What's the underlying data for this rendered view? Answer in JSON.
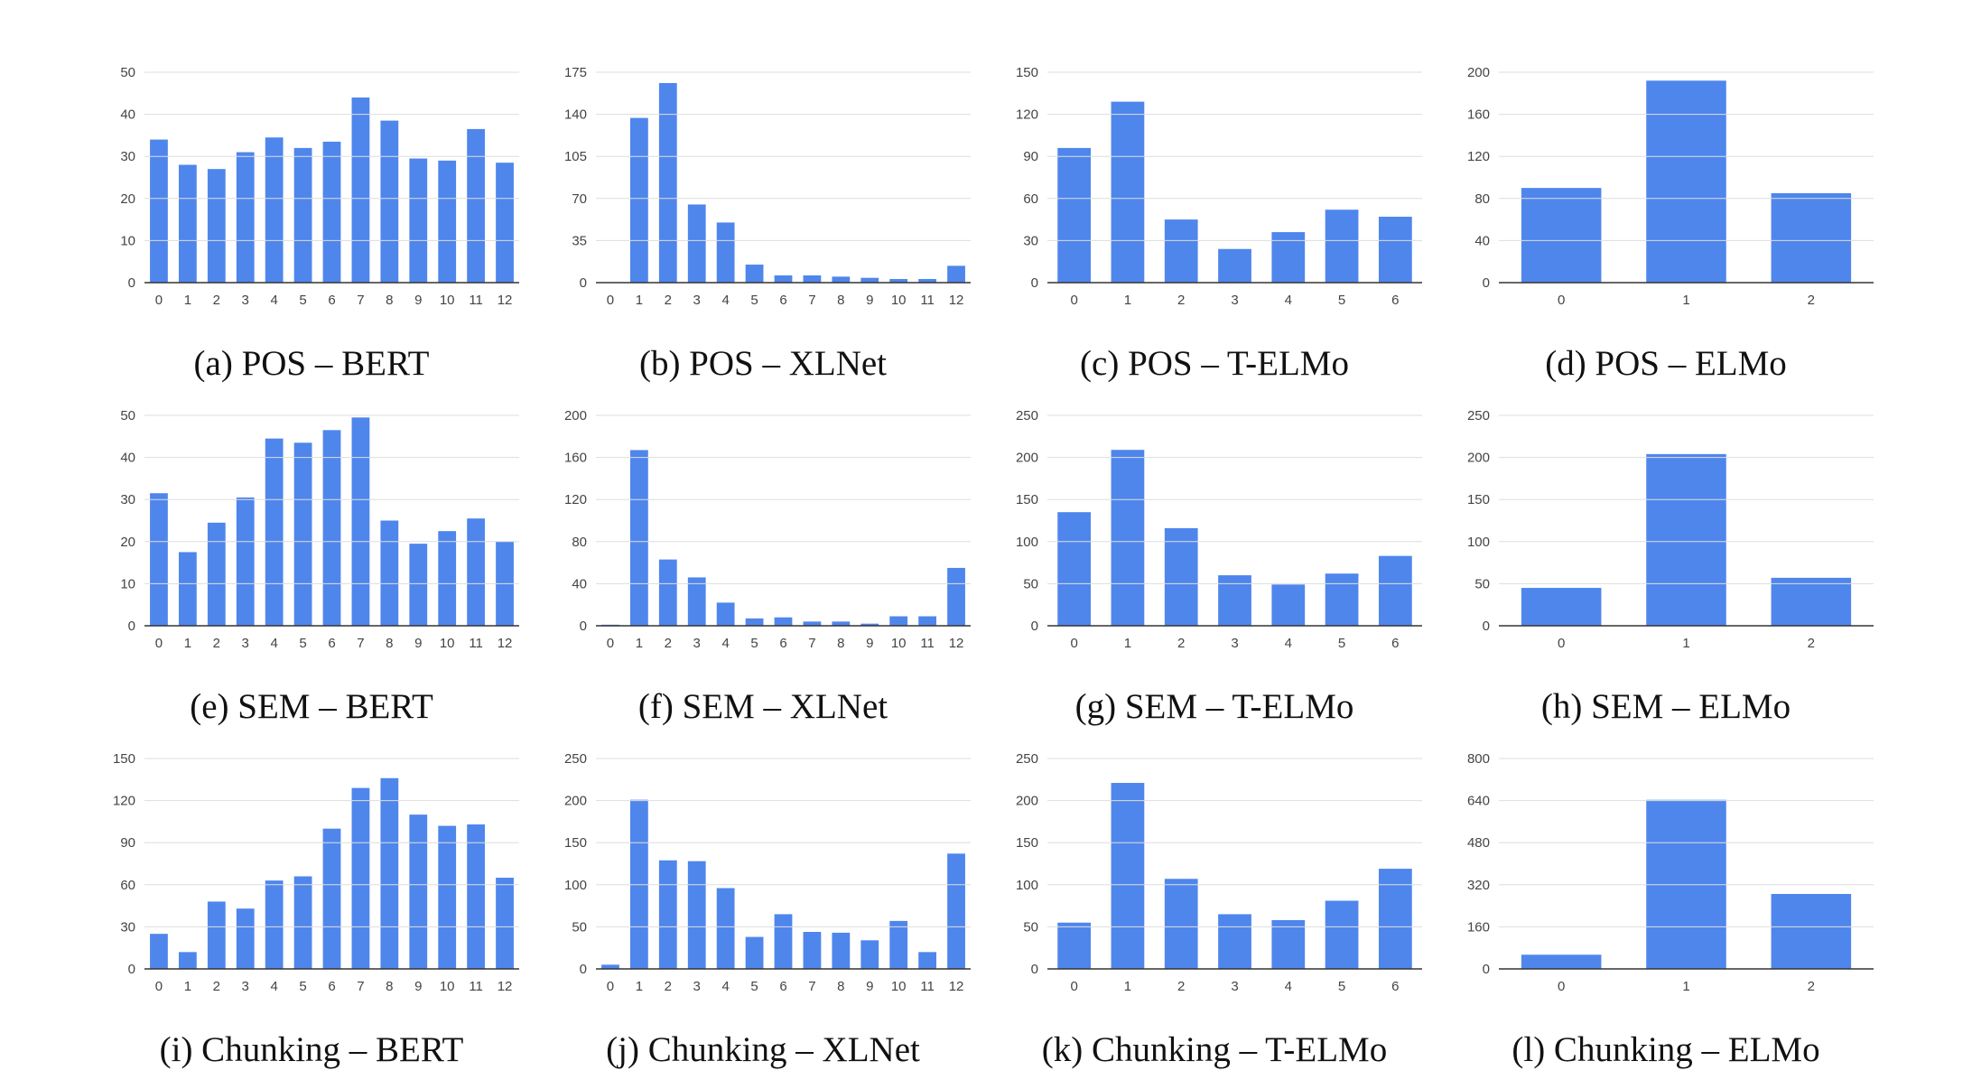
{
  "bar_color": "#4f86ec",
  "chart_data": [
    {
      "type": "bar",
      "caption": "(a) POS – BERT",
      "categories": [
        "0",
        "1",
        "2",
        "3",
        "4",
        "5",
        "6",
        "7",
        "8",
        "9",
        "10",
        "11",
        "12"
      ],
      "values": [
        34,
        28,
        27,
        31,
        34.5,
        32,
        33.5,
        44,
        38.5,
        29.5,
        29,
        36.5,
        28.5
      ],
      "ylim": [
        0,
        50
      ],
      "yticks": [
        0,
        10,
        20,
        30,
        40,
        50
      ],
      "grid": true
    },
    {
      "type": "bar",
      "caption": "(b) POS – XLNet",
      "categories": [
        "0",
        "1",
        "2",
        "3",
        "4",
        "5",
        "6",
        "7",
        "8",
        "9",
        "10",
        "11",
        "12"
      ],
      "values": [
        0,
        137,
        166,
        65,
        50,
        15,
        6,
        6,
        5,
        4,
        3,
        3,
        14
      ],
      "ylim": [
        0,
        175
      ],
      "yticks": [
        0,
        35,
        70,
        105,
        140,
        175
      ],
      "grid": true
    },
    {
      "type": "bar",
      "caption": "(c) POS – T-ELMo",
      "categories": [
        "0",
        "1",
        "2",
        "3",
        "4",
        "5",
        "6"
      ],
      "values": [
        96,
        129,
        45,
        24,
        36,
        52,
        47
      ],
      "ylim": [
        0,
        150
      ],
      "yticks": [
        0,
        30,
        60,
        90,
        120,
        150
      ],
      "grid": true
    },
    {
      "type": "bar",
      "caption": "(d) POS – ELMo",
      "categories": [
        "0",
        "1",
        "2"
      ],
      "values": [
        90,
        192,
        85
      ],
      "ylim": [
        0,
        200
      ],
      "yticks": [
        0,
        40,
        80,
        120,
        160,
        200
      ],
      "grid": true
    },
    {
      "type": "bar",
      "caption": "(e) SEM – BERT",
      "categories": [
        "0",
        "1",
        "2",
        "3",
        "4",
        "5",
        "6",
        "7",
        "8",
        "9",
        "10",
        "11",
        "12"
      ],
      "values": [
        31.5,
        17.5,
        24.5,
        30.5,
        44.5,
        43.5,
        46.5,
        49.5,
        25,
        19.5,
        22.5,
        25.5,
        20
      ],
      "ylim": [
        0,
        50
      ],
      "yticks": [
        0,
        10,
        20,
        30,
        40,
        50
      ],
      "grid": true
    },
    {
      "type": "bar",
      "caption": "(f) SEM – XLNet",
      "categories": [
        "0",
        "1",
        "2",
        "3",
        "4",
        "5",
        "6",
        "7",
        "8",
        "9",
        "10",
        "11",
        "12"
      ],
      "values": [
        1,
        167,
        63,
        46,
        22,
        7,
        8,
        4,
        4,
        2,
        9,
        9,
        55
      ],
      "ylim": [
        0,
        200
      ],
      "yticks": [
        0,
        40,
        80,
        120,
        160,
        200
      ],
      "grid": true
    },
    {
      "type": "bar",
      "caption": "(g) SEM – T-ELMo",
      "categories": [
        "0",
        "1",
        "2",
        "3",
        "4",
        "5",
        "6"
      ],
      "values": [
        135,
        209,
        116,
        60,
        49,
        62,
        83
      ],
      "ylim": [
        0,
        250
      ],
      "yticks": [
        0,
        50,
        100,
        150,
        200,
        250
      ],
      "grid": true
    },
    {
      "type": "bar",
      "caption": "(h) SEM – ELMo",
      "categories": [
        "0",
        "1",
        "2"
      ],
      "values": [
        45,
        204,
        57
      ],
      "ylim": [
        0,
        250
      ],
      "yticks": [
        0,
        50,
        100,
        150,
        200,
        250
      ],
      "grid": true
    },
    {
      "type": "bar",
      "caption": "(i) Chunking – BERT",
      "categories": [
        "0",
        "1",
        "2",
        "3",
        "4",
        "5",
        "6",
        "7",
        "8",
        "9",
        "10",
        "11",
        "12"
      ],
      "values": [
        25,
        12,
        48,
        43,
        63,
        66,
        100,
        129,
        136,
        110,
        102,
        103,
        65
      ],
      "ylim": [
        0,
        150
      ],
      "yticks": [
        0,
        30,
        60,
        90,
        120,
        150
      ],
      "grid": true
    },
    {
      "type": "bar",
      "caption": "(j) Chunking – XLNet",
      "categories": [
        "0",
        "1",
        "2",
        "3",
        "4",
        "5",
        "6",
        "7",
        "8",
        "9",
        "10",
        "11",
        "12"
      ],
      "values": [
        5,
        201,
        129,
        128,
        96,
        38,
        65,
        44,
        43,
        34,
        57,
        20,
        137
      ],
      "ylim": [
        0,
        250
      ],
      "yticks": [
        0,
        50,
        100,
        150,
        200,
        250
      ],
      "grid": true
    },
    {
      "type": "bar",
      "caption": "(k) Chunking – T-ELMo",
      "categories": [
        "0",
        "1",
        "2",
        "3",
        "4",
        "5",
        "6"
      ],
      "values": [
        55,
        221,
        107,
        65,
        58,
        81,
        119
      ],
      "ylim": [
        0,
        250
      ],
      "yticks": [
        0,
        50,
        100,
        150,
        200,
        250
      ],
      "grid": true
    },
    {
      "type": "bar",
      "caption": "(l) Chunking – ELMo",
      "categories": [
        "0",
        "1",
        "2"
      ],
      "values": [
        54,
        643,
        285
      ],
      "ylim": [
        0,
        800
      ],
      "yticks": [
        0,
        160,
        320,
        480,
        640,
        800
      ],
      "grid": true
    }
  ]
}
